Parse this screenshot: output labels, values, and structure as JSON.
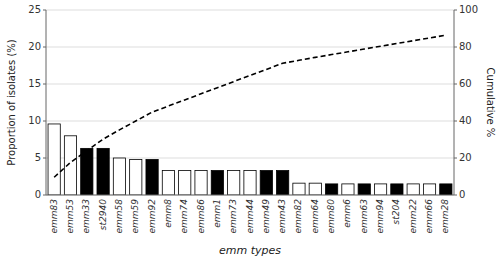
{
  "chart_data": {
    "type": "bar",
    "categories": [
      "emm83",
      "emm53",
      "emm33",
      "st2940",
      "emm58",
      "emm59",
      "emm92",
      "emm8",
      "emm74",
      "emm86",
      "emm1",
      "emm73",
      "emm44",
      "emm49",
      "emm43",
      "emm82",
      "emm64",
      "emm80",
      "emm6",
      "emm63",
      "emm94",
      "st204",
      "emm22",
      "emm66",
      "emm28"
    ],
    "series": [
      {
        "type": "bar",
        "colors": [
          "white",
          "white",
          "black",
          "black",
          "white",
          "white",
          "black",
          "white",
          "white",
          "white",
          "black",
          "white",
          "white",
          "black",
          "black",
          "white",
          "white",
          "black",
          "white",
          "black",
          "white",
          "black",
          "white",
          "white",
          "black"
        ],
        "values": [
          9.6,
          8.0,
          6.3,
          6.3,
          5.0,
          4.8,
          4.8,
          3.3,
          3.3,
          3.3,
          3.3,
          3.3,
          3.3,
          3.3,
          3.3,
          1.6,
          1.6,
          1.5,
          1.5,
          1.5,
          1.5,
          1.5,
          1.5,
          1.5,
          1.5
        ]
      },
      {
        "type": "line",
        "axis": "y2",
        "color": "#000000",
        "line_style": "dashed",
        "values": [
          9.6,
          17.6,
          23.9,
          30.2,
          35.2,
          40.0,
          44.8,
          48.1,
          51.4,
          54.7,
          58.0,
          61.3,
          64.6,
          67.9,
          71.2,
          72.8,
          74.4,
          75.9,
          77.4,
          78.9,
          80.4,
          81.9,
          83.4,
          84.9,
          86.4
        ]
      }
    ],
    "xlabel": "emm types",
    "ylabel": "Proportion of isolates (%)",
    "y2label": "Cumulative %",
    "ylim": [
      0,
      25
    ],
    "yticks": [
      0,
      5,
      10,
      15,
      20,
      25
    ],
    "y2lim": [
      0,
      100
    ],
    "y2ticks": [
      0,
      20,
      40,
      60,
      80,
      100
    ],
    "grid": true
  }
}
